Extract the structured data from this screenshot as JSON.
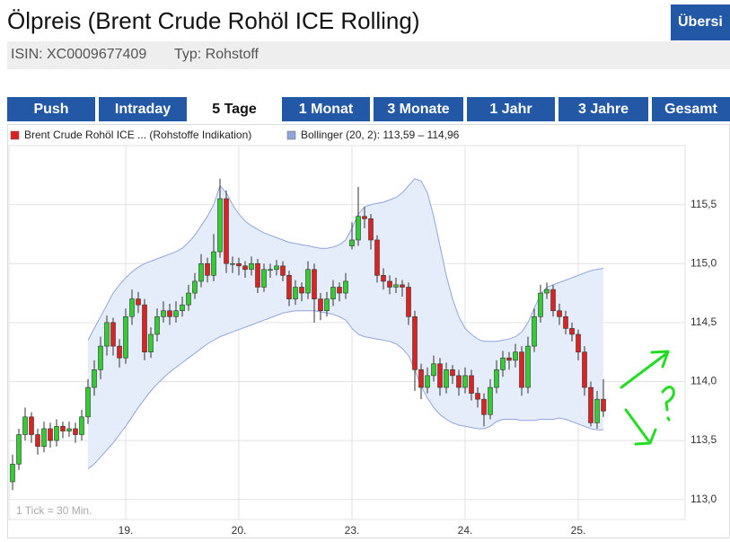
{
  "header": {
    "title": "Ölpreis (Brent Crude Rohöl ICE Rolling)",
    "button": "Übersi",
    "isin": "ISIN: XC0009677409",
    "type": "Typ: Rohstoff"
  },
  "tabs": [
    "Push",
    "Intraday",
    "5 Tage",
    "1 Monat",
    "3 Monate",
    "1 Jahr",
    "3 Jahre",
    "Gesamt"
  ],
  "active_tab": 2,
  "chart_data": {
    "type": "candlestick",
    "note": "1 Tick = 30 Min.",
    "grid": true,
    "ylim": [
      112.83,
      116.0
    ],
    "yticks": [
      {
        "value": 113.0,
        "label": "113,0"
      },
      {
        "value": 113.5,
        "label": "113,5"
      },
      {
        "value": 114.0,
        "label": "114,0"
      },
      {
        "value": 114.5,
        "label": "114,5"
      },
      {
        "value": 115.0,
        "label": "115,0"
      },
      {
        "value": 115.5,
        "label": "115,5"
      }
    ],
    "categories": [
      null,
      null,
      null,
      null,
      null,
      null,
      null,
      null,
      null,
      null,
      null,
      null,
      null,
      null,
      null,
      null,
      null,
      null,
      "19.",
      null,
      null,
      null,
      null,
      null,
      null,
      null,
      null,
      null,
      null,
      null,
      null,
      null,
      null,
      null,
      null,
      null,
      "20.",
      null,
      null,
      null,
      null,
      null,
      null,
      null,
      null,
      null,
      null,
      null,
      null,
      null,
      null,
      null,
      null,
      null,
      "23.",
      null,
      null,
      null,
      null,
      null,
      null,
      null,
      null,
      null,
      null,
      null,
      null,
      null,
      null,
      null,
      null,
      null,
      "24.",
      null,
      null,
      null,
      null,
      null,
      null,
      null,
      null,
      null,
      null,
      null,
      null,
      null,
      null,
      null,
      null,
      null,
      "25.",
      null,
      null,
      null,
      null
    ],
    "series": [
      {
        "name": "Brent Crude Rohöl ICE ... (Rohstoffe Indikation)",
        "color": "#dd2222",
        "up_color": "#33cc33",
        "ohlc": [
          [
            113.15,
            113.38,
            113.08,
            113.3
          ],
          [
            113.3,
            113.6,
            113.25,
            113.55
          ],
          [
            113.55,
            113.78,
            113.5,
            113.7
          ],
          [
            113.7,
            113.74,
            113.48,
            113.55
          ],
          [
            113.55,
            113.6,
            113.38,
            113.45
          ],
          [
            113.45,
            113.66,
            113.4,
            113.6
          ],
          [
            113.6,
            113.65,
            113.44,
            113.5
          ],
          [
            113.5,
            113.68,
            113.45,
            113.62
          ],
          [
            113.62,
            113.66,
            113.52,
            113.58
          ],
          [
            113.58,
            113.66,
            113.53,
            113.6
          ],
          [
            113.6,
            113.65,
            113.48,
            113.55
          ],
          [
            113.55,
            113.76,
            113.5,
            113.7
          ],
          [
            113.7,
            114.02,
            113.64,
            113.95
          ],
          [
            113.95,
            114.18,
            113.88,
            114.1
          ],
          [
            114.1,
            114.38,
            114.02,
            114.3
          ],
          [
            114.3,
            114.56,
            114.22,
            114.5
          ],
          [
            114.5,
            114.54,
            114.22,
            114.3
          ],
          [
            114.3,
            114.36,
            114.12,
            114.2
          ],
          [
            114.2,
            114.62,
            114.15,
            114.55
          ],
          [
            114.55,
            114.78,
            114.48,
            114.7
          ],
          [
            114.7,
            114.76,
            114.58,
            114.65
          ],
          [
            114.65,
            114.7,
            114.18,
            114.25
          ],
          [
            114.25,
            114.46,
            114.2,
            114.4
          ],
          [
            114.4,
            114.62,
            114.34,
            114.55
          ],
          [
            114.55,
            114.68,
            114.5,
            114.6
          ],
          [
            114.6,
            114.66,
            114.48,
            114.55
          ],
          [
            114.55,
            114.68,
            114.5,
            114.6
          ],
          [
            114.6,
            114.72,
            114.55,
            114.65
          ],
          [
            114.65,
            114.82,
            114.6,
            114.75
          ],
          [
            114.75,
            114.92,
            114.7,
            114.85
          ],
          [
            114.85,
            115.08,
            114.8,
            115.0
          ],
          [
            115.0,
            115.05,
            114.84,
            114.9
          ],
          [
            114.9,
            115.25,
            114.85,
            115.1
          ],
          [
            115.1,
            115.72,
            115.05,
            115.55
          ],
          [
            115.55,
            115.62,
            114.92,
            115.0
          ],
          [
            115.0,
            115.06,
            114.92,
            115.0
          ],
          [
            115.0,
            115.05,
            114.9,
            114.98
          ],
          [
            114.98,
            115.02,
            114.88,
            114.95
          ],
          [
            114.95,
            115.06,
            114.9,
            115.0
          ],
          [
            115.0,
            115.04,
            114.75,
            114.8
          ],
          [
            114.8,
            115.0,
            114.76,
            114.95
          ],
          [
            114.95,
            115.0,
            114.88,
            114.95
          ],
          [
            114.95,
            115.03,
            114.9,
            114.98
          ],
          [
            114.98,
            115.02,
            114.85,
            114.9
          ],
          [
            114.9,
            114.94,
            114.64,
            114.7
          ],
          [
            114.7,
            114.86,
            114.65,
            114.8
          ],
          [
            114.8,
            114.84,
            114.68,
            114.75
          ],
          [
            114.75,
            115.02,
            114.7,
            114.95
          ],
          [
            114.95,
            115.0,
            114.5,
            114.7
          ],
          [
            114.7,
            114.75,
            114.52,
            114.6
          ],
          [
            114.6,
            114.76,
            114.55,
            114.7
          ],
          [
            114.7,
            114.86,
            114.64,
            114.8
          ],
          [
            114.8,
            114.84,
            114.68,
            114.75
          ],
          [
            114.75,
            114.92,
            114.7,
            114.85
          ],
          [
            115.15,
            115.35,
            115.12,
            115.2
          ],
          [
            115.2,
            115.65,
            115.15,
            115.4
          ],
          [
            115.4,
            115.48,
            115.3,
            115.38
          ],
          [
            115.38,
            115.42,
            115.12,
            115.2
          ],
          [
            115.2,
            115.24,
            114.84,
            114.9
          ],
          [
            114.9,
            114.96,
            114.78,
            114.85
          ],
          [
            114.85,
            114.9,
            114.74,
            114.8
          ],
          [
            114.8,
            114.88,
            114.75,
            114.82
          ],
          [
            114.82,
            114.86,
            114.72,
            114.8
          ],
          [
            114.8,
            114.84,
            114.48,
            114.55
          ],
          [
            114.55,
            114.6,
            113.92,
            114.1
          ],
          [
            114.1,
            114.15,
            113.85,
            113.95
          ],
          [
            113.95,
            114.12,
            113.9,
            114.05
          ],
          [
            114.05,
            114.22,
            114.0,
            114.15
          ],
          [
            114.15,
            114.2,
            113.88,
            113.95
          ],
          [
            113.95,
            114.16,
            113.9,
            114.1
          ],
          [
            114.1,
            114.14,
            113.98,
            114.05
          ],
          [
            114.05,
            114.1,
            113.88,
            113.95
          ],
          [
            113.95,
            114.12,
            113.9,
            114.05
          ],
          [
            114.05,
            114.1,
            113.84,
            113.9
          ],
          [
            113.9,
            113.95,
            113.78,
            113.85
          ],
          [
            113.85,
            113.9,
            113.62,
            113.72
          ],
          [
            113.72,
            114.02,
            113.68,
            113.95
          ],
          [
            113.95,
            114.18,
            113.9,
            114.1
          ],
          [
            114.1,
            114.26,
            114.04,
            114.2
          ],
          [
            114.2,
            114.25,
            114.1,
            114.18
          ],
          [
            114.18,
            114.32,
            114.12,
            114.25
          ],
          [
            114.25,
            114.3,
            113.88,
            113.95
          ],
          [
            113.95,
            114.38,
            113.9,
            114.3
          ],
          [
            114.3,
            114.62,
            114.25,
            114.55
          ],
          [
            114.55,
            114.82,
            114.5,
            114.75
          ],
          [
            114.75,
            114.84,
            114.7,
            114.78
          ],
          [
            114.78,
            114.82,
            114.55,
            114.6
          ],
          [
            114.6,
            114.66,
            114.48,
            114.55
          ],
          [
            114.55,
            114.6,
            114.4,
            114.45
          ],
          [
            114.45,
            114.5,
            114.34,
            114.4
          ],
          [
            114.4,
            114.44,
            114.18,
            114.25
          ],
          [
            114.25,
            114.3,
            113.88,
            113.95
          ],
          [
            113.95,
            114.0,
            113.62,
            113.65
          ],
          [
            113.65,
            113.92,
            113.6,
            113.85
          ],
          [
            113.85,
            114.02,
            113.7,
            113.75
          ]
        ]
      },
      {
        "name": "Bollinger (20, 2): 113,59 – 114,96",
        "color": "#8fa6dc",
        "fill": "#e6edfa",
        "upper": [
          null,
          null,
          null,
          null,
          null,
          null,
          null,
          null,
          null,
          null,
          null,
          null,
          114.35,
          114.45,
          114.55,
          114.65,
          114.75,
          114.82,
          114.88,
          114.93,
          114.97,
          115.0,
          115.02,
          115.04,
          115.06,
          115.08,
          115.1,
          115.13,
          115.18,
          115.24,
          115.32,
          115.4,
          115.5,
          115.66,
          115.6,
          115.5,
          115.42,
          115.36,
          115.32,
          115.29,
          115.26,
          115.24,
          115.22,
          115.2,
          115.18,
          115.17,
          115.16,
          115.15,
          115.14,
          115.13,
          115.13,
          115.14,
          115.16,
          115.2,
          115.3,
          115.42,
          115.48,
          115.5,
          115.51,
          115.52,
          115.54,
          115.56,
          115.6,
          115.66,
          115.72,
          115.7,
          115.6,
          115.4,
          115.15,
          114.9,
          114.7,
          114.55,
          114.45,
          114.4,
          114.36,
          114.34,
          114.34,
          114.34,
          114.35,
          114.36,
          114.38,
          114.42,
          114.5,
          114.62,
          114.74,
          114.8,
          114.82,
          114.84,
          114.86,
          114.88,
          114.9,
          114.92,
          114.94,
          114.95,
          114.96
        ],
        "lower": [
          null,
          null,
          null,
          null,
          null,
          null,
          null,
          null,
          null,
          null,
          null,
          null,
          113.26,
          113.3,
          113.36,
          113.42,
          113.48,
          113.55,
          113.62,
          113.7,
          113.78,
          113.85,
          113.92,
          113.98,
          114.03,
          114.08,
          114.12,
          114.16,
          114.2,
          114.24,
          114.28,
          114.32,
          114.35,
          114.38,
          114.4,
          114.42,
          114.44,
          114.46,
          114.48,
          114.5,
          114.52,
          114.54,
          114.56,
          114.58,
          114.59,
          114.6,
          114.6,
          114.6,
          114.6,
          114.59,
          114.58,
          114.57,
          114.55,
          114.52,
          114.45,
          114.4,
          114.38,
          114.37,
          114.36,
          114.35,
          114.34,
          114.32,
          114.28,
          114.22,
          114.1,
          113.96,
          113.86,
          113.78,
          113.72,
          113.68,
          113.65,
          113.63,
          113.62,
          113.61,
          113.6,
          113.6,
          113.62,
          113.66,
          113.68,
          113.68,
          113.68,
          113.67,
          113.67,
          113.67,
          113.68,
          113.68,
          113.68,
          113.69,
          113.68,
          113.66,
          113.64,
          113.62,
          113.6,
          113.59,
          113.59
        ]
      }
    ]
  }
}
